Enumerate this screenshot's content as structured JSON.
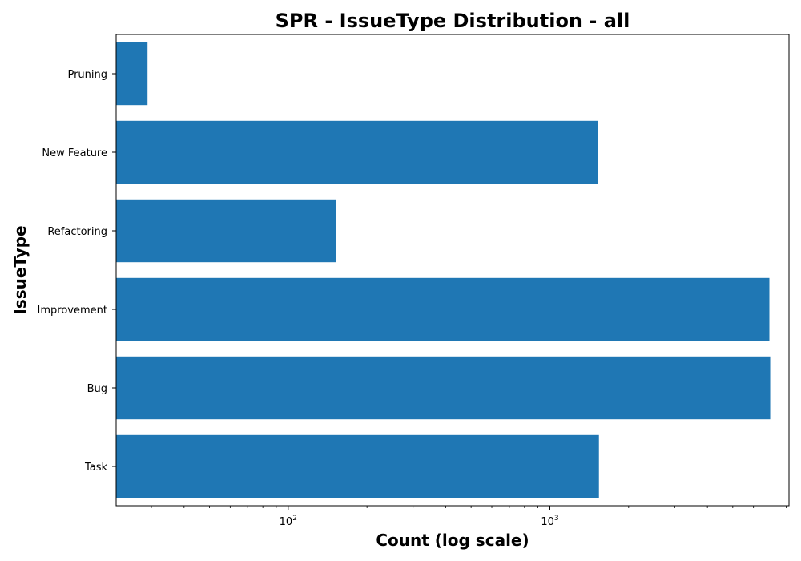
{
  "chart_data": {
    "type": "bar",
    "orientation": "horizontal",
    "title": "SPR - IssueType Distribution - all",
    "xlabel": "Count (log scale)",
    "ylabel": "IssueType",
    "x_scale": "log",
    "xlim": [
      22,
      8200
    ],
    "x_ticks": [
      {
        "value": 100,
        "label_base": "10",
        "label_exp": "2"
      },
      {
        "value": 1000,
        "label_base": "10",
        "label_exp": "3"
      }
    ],
    "categories": [
      "Task",
      "Bug",
      "Improvement",
      "Refactoring",
      "New Feature",
      "Pruning"
    ],
    "values": [
      1540,
      6950,
      6900,
      152,
      1530,
      29
    ],
    "bar_color": "#1f77b4",
    "grid": false,
    "legend": "none"
  }
}
